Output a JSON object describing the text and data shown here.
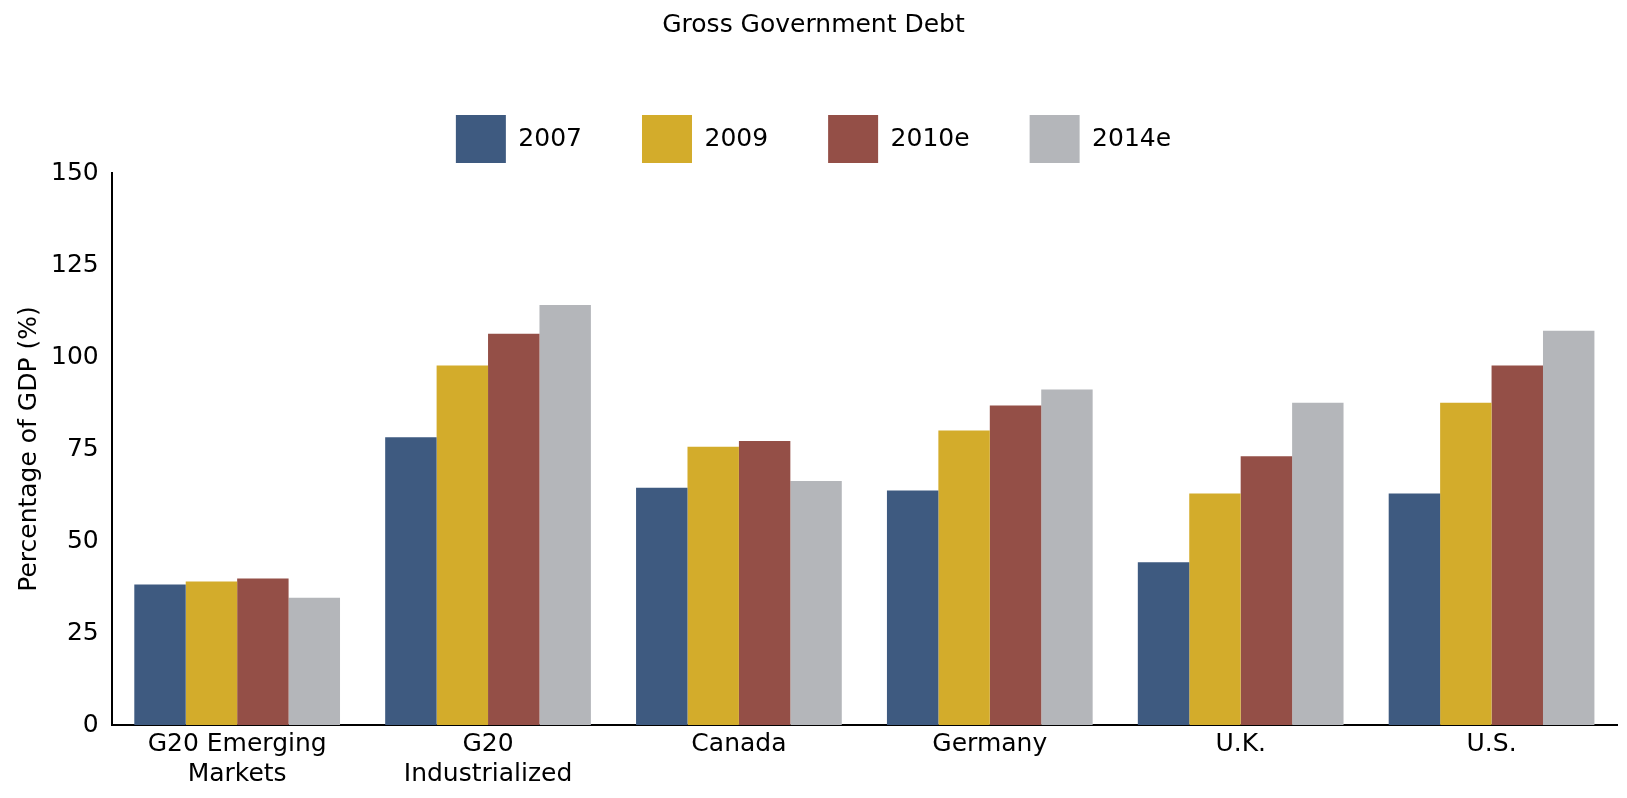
{
  "chart_data": {
    "type": "bar",
    "title": "Gross Government Debt",
    "ylabel": "Percentage of GDP (%)",
    "categories": [
      "G20 Emerging Markets",
      "G20 Industrialized",
      "Canada",
      "Germany",
      "U.K.",
      "U.S."
    ],
    "series": [
      {
        "name": "2007",
        "color": "#3e5a80",
        "values": [
          38.2,
          78.2,
          64.5,
          63.7,
          44.2,
          62.9
        ]
      },
      {
        "name": "2009",
        "color": "#d3ac2b",
        "values": [
          39,
          97.7,
          75.6,
          80,
          62.9,
          87.6
        ]
      },
      {
        "name": "2010e",
        "color": "#944f47",
        "values": [
          39.8,
          106.3,
          77.2,
          86.8,
          73,
          97.7
        ]
      },
      {
        "name": "2014e",
        "color": "#b4b6ba",
        "values": [
          34.6,
          114.1,
          66.3,
          91.2,
          87.6,
          107.1
        ]
      }
    ],
    "ylim": [
      0,
      150
    ],
    "yticks": [
      0,
      25,
      50,
      75,
      100,
      125,
      150
    ],
    "grid": false,
    "legend": "top"
  }
}
